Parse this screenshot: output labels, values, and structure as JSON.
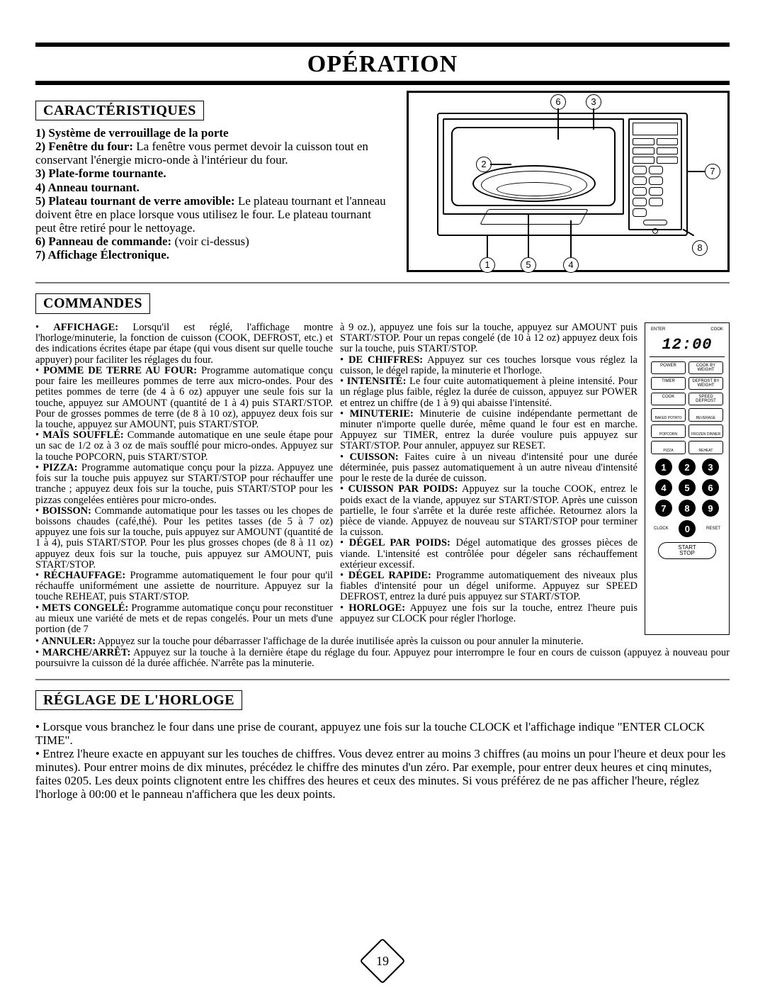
{
  "title": "OPÉRATION",
  "page_number": "19",
  "sections": {
    "features_head": "CARACTÉRISTIQUES",
    "commands_head": "COMMANDES",
    "clock_head": "RÉGLAGE DE L'HORLOGE"
  },
  "features": {
    "l1a": "1) Système de verrouillage de la porte",
    "l2a": "2) Fenêtre du four:",
    "l2b": " La fenêtre vous permet devoir la cuisson tout en conservant l'énergie micro-onde à l'intérieur du four.",
    "l3a": "3) Plate-forme tournante.",
    "l4a": "4) Anneau tournant.",
    "l5a": "5) Plateau tournant de verre amovible:",
    "l5b": " Le plateau tournant et l'anneau doivent être en place lorsque vous utilisez le four. Le plateau tournant peut être retiré pour le nettoyage.",
    "l6a": "6) Panneau de commande:",
    "l6b": " (voir ci-dessus)",
    "l7a": "7) Affichage Électronique."
  },
  "diagram": {
    "c1": "1",
    "c2": "2",
    "c3": "3",
    "c4": "4",
    "c5": "5",
    "c6": "6",
    "c7": "7",
    "c8": "8"
  },
  "col_left": [
    {
      "term": "AFFICHAGE:",
      "body": " Lorsqu'il est réglé, l'affichage montre l'horloge/minuterie, la fonction de cuisson (COOK, DEFROST, etc.) et des indications écrites étape par étape (qui vous disent sur quelle touche appuyer) pour faciliter les réglages du four."
    },
    {
      "term": "POMME DE TERRE AU FOUR:",
      "body": " Programme automatique conçu pour faire les meilleures pommes de terre aux micro-ondes. Pour des petites pommes de terre (de 4 à 6 oz) appuyer une seule fois sur la touche, appuyez sur AMOUNT (quantité de 1 à 4) puis START/STOP. Pour de grosses pommes de terre (de 8 à 10 oz), appuyez deux fois sur la touche, appuyez sur AMOUNT, puis START/STOP."
    },
    {
      "term": "MAÏS SOUFFLÉ:",
      "body": " Commande automatique en une seule étape pour un sac de 1/2 oz à 3 oz de maïs soufflé pour micro-ondes. Appuyez sur la touche POPCORN, puis START/STOP."
    },
    {
      "term": "PIZZA:",
      "body": " Programme automatique conçu pour la pizza. Appuyez une fois sur la touche puis appuyez sur START/STOP pour réchauffer une tranche ; appuyez deux fois sur la touche, puis START/STOP pour les pizzas congelées entières pour micro-ondes."
    },
    {
      "term": "BOISSON:",
      "body": " Commande automatique pour les tasses ou les chopes de boissons chaudes (café,thé). Pour les petites tasses (de 5 à 7 oz) appuyez une fois sur la touche, puis appuyez sur AMOUNT (quantité de 1 à 4), puis START/STOP. Pour les plus grosses chopes (de 8 à 11 oz) appuyez deux fois sur la touche, puis appuyez sur AMOUNT, puis START/STOP."
    },
    {
      "term": "RÉCHAUFFAGE:",
      "body": " Programme automatiquement le four pour qu'il réchauffe uniformément une assiette de nourriture. Appuyez sur la touche REHEAT, puis START/STOP."
    },
    {
      "term": "METS CONGELÉ:",
      "body": " Programme automatique conçu pour reconstituer au mieux une variété de mets et de repas congelés. Pour un mets d'une portion (de 7"
    }
  ],
  "col_right": [
    {
      "term": "",
      "body": "à 9 oz.), appuyez une fois sur la touche, appuyez sur AMOUNT puis START/STOP. Pour un repas congelé (de 10 à 12 oz) appuyez deux fois sur la touche, puis START/STOP."
    },
    {
      "term": "DE CHIFFRES:",
      "body": " Appuyez sur ces touches lorsque vous réglez la cuisson, le dégel rapide, la minuterie et l'horloge."
    },
    {
      "term": "INTENSITÉ:",
      "body": " Le four cuite automatiquement à pleine intensité. Pour un réglage plus faible, réglez la durée de cuisson, appuyez sur POWER et entrez un chiffre (de 1 à 9) qui abaisse l'intensité."
    },
    {
      "term": "MINUTERIE:",
      "body": " Minuterie de cuisine indépendante permettant de minuter n'importe quelle durée, même quand le four est en marche. Appuyez sur TIMER, entrez la durée voulure puis appuyez sur START/STOP. Pour annuler, appuyez sur RESET."
    },
    {
      "term": "CUISSON:",
      "body": " Faites cuire à un niveau d'intensité pour une durée déterminée, puis passez automatiquement à un autre niveau d'intensité pour le reste de la durée de cuisson."
    },
    {
      "term": "CUISSON PAR POIDS:",
      "body": " Appuyez sur la touche COOK, entrez le poids exact de la viande, appuyez sur START/STOP. Après une cuisson partielle, le four s'arrête et la durée reste affichée. Retournez alors la pièce de viande. Appuyez de nouveau sur START/STOP pour terminer la cuisson."
    },
    {
      "term": "DÉGEL PAR POIDS:",
      "body": " Dégel automatique des grosses pièces de viande. L'intensité est contrôlée pour dégeler sans réchauffement extérieur excessif."
    },
    {
      "term": "DÉGEL RAPIDE:",
      "body": " Programme automatiquement des niveaux plus fiables d'intensité pour un dégel uniforme. Appuyez sur SPEED DEFROST, entrez la duré puis appuyez sur START/STOP."
    },
    {
      "term": "HORLOGE:",
      "body": " Appuyez une fois sur la touche, entrez l'heure puis appuyez sur CLOCK pour régler l'horloge."
    }
  ],
  "lower": [
    {
      "term": "ANNULER:",
      "body": " Appuyez sur la touche pour débarrasser l'affichage de la durée inutilisée après la cuisson ou pour annuler la minuterie."
    },
    {
      "term": "MARCHE/ARRÊT:",
      "body": " Appuyez sur la touche à la dernière étape du réglage du four. Appuyez pour interrompre le four en cours de cuisson (appuyez à nouveau pour poursuivre la cuisson dé la durée affichée. N'arrête pas la minuterie."
    }
  ],
  "panel": {
    "enter": "ENTER",
    "cook": "COOK",
    "clock": "12:00",
    "btns": [
      "POWER",
      "COOK BY WEIGHT",
      "TIMER",
      "DEFROST BY WEIGHT",
      "COOK",
      "SPEED DEFROST"
    ],
    "icons": [
      "BAKED POTATO",
      "BEVERAGE",
      "POPCORN",
      "FROZEN DINNER",
      "PIZZA",
      "REHEAT"
    ],
    "keys": [
      "1",
      "2",
      "3",
      "4",
      "5",
      "6",
      "7",
      "8",
      "9"
    ],
    "clock_lbl": "CLOCK",
    "zero": "0",
    "reset": "RESET",
    "start": "START",
    "stop": "STOP"
  },
  "clock_text": {
    "p1": "• Lorsque vous branchez le four dans une prise de courant, appuyez une fois sur la touche CLOCK et l'affichage indique \"ENTER CLOCK TIME\".",
    "p2": "• Entrez l'heure exacte en appuyant sur les touches de chiffres. Vous devez entrer au moins 3 chiffres (au moins un pour l'heure et deux pour les minutes). Pour entrer moins de dix minutes, précédez le chiffre des minutes d'un zéro. Par exemple, pour entrer deux heures et cinq minutes, faites 0205. Les deux points clignotent entre les chiffres des heures et ceux des minutes. Si vous préférez de ne pas afficher l'heure, réglez l'horloge à 00:00 et le panneau n'affichera que les deux points."
  }
}
